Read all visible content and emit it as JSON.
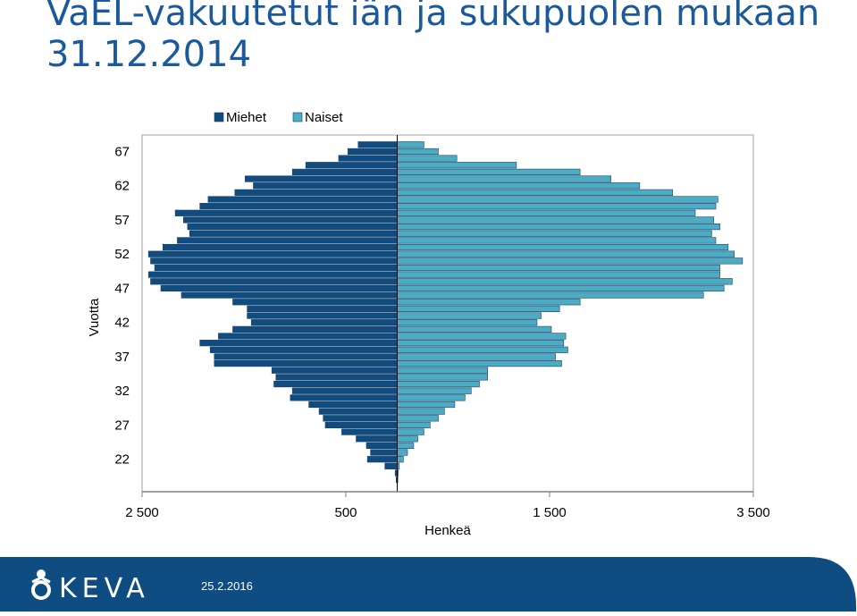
{
  "header": {
    "title_line1": "VaEL-vakuutetut iän ja sukupuolen mukaan",
    "title_line2": "31.12.2014"
  },
  "footer": {
    "logo_text": "KEVA",
    "date": "25.2.2016",
    "background_color": "#0f4c81"
  },
  "chart_data": {
    "type": "bar",
    "orientation": "horizontal-population-pyramid",
    "xlabel": "Henkeä",
    "ylabel": "Vuotta",
    "x_tick_labels": [
      "2 500",
      "500",
      "1 500",
      "3 500"
    ],
    "y_tick_labels": [
      "67",
      "62",
      "57",
      "52",
      "47",
      "42",
      "37",
      "32",
      "27",
      "22"
    ],
    "y_ticks": [
      67,
      62,
      57,
      52,
      47,
      42,
      37,
      32,
      27,
      22
    ],
    "age_range": [
      19,
      68
    ],
    "categories": [
      68,
      67,
      66,
      65,
      64,
      63,
      62,
      61,
      60,
      59,
      58,
      57,
      56,
      55,
      54,
      53,
      52,
      51,
      50,
      49,
      48,
      47,
      46,
      45,
      44,
      43,
      42,
      41,
      40,
      39,
      38,
      37,
      36,
      35,
      34,
      33,
      32,
      31,
      30,
      29,
      28,
      27,
      26,
      25,
      24,
      23,
      22,
      21,
      20,
      19
    ],
    "series": [
      {
        "name": "Miehet",
        "color": "#0f4c81",
        "values": [
          190,
          240,
          285,
          445,
          510,
          740,
          700,
          790,
          920,
          960,
          1080,
          1040,
          1020,
          1010,
          1070,
          1140,
          1210,
          1200,
          1180,
          1210,
          1200,
          1150,
          1050,
          800,
          730,
          730,
          710,
          800,
          870,
          960,
          910,
          890,
          890,
          610,
          590,
          600,
          510,
          520,
          430,
          380,
          360,
          350,
          270,
          200,
          150,
          130,
          145,
          60,
          10,
          5
        ]
      },
      {
        "name": "Naiset",
        "color": "#4bacc6",
        "values": [
          130,
          200,
          290,
          580,
          890,
          1040,
          1180,
          1340,
          1560,
          1550,
          1450,
          1540,
          1570,
          1530,
          1550,
          1610,
          1640,
          1680,
          1570,
          1570,
          1630,
          1590,
          1490,
          890,
          790,
          700,
          680,
          750,
          820,
          810,
          830,
          770,
          800,
          440,
          440,
          400,
          360,
          330,
          280,
          230,
          200,
          160,
          130,
          100,
          80,
          50,
          30,
          10,
          5,
          3
        ]
      }
    ],
    "legend": "top",
    "grid": false
  }
}
